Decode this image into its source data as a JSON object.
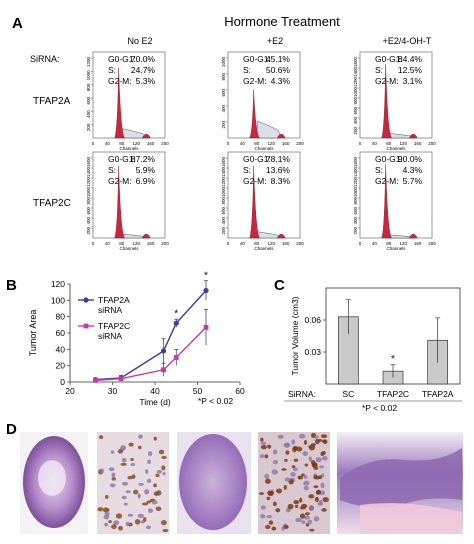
{
  "panels": {
    "a": "A",
    "b": "B",
    "c": "C",
    "d": "D"
  },
  "hormone_treatment_label": "Hormone Treatment",
  "sirna_label": "SiRNA:",
  "conditions": [
    "No E2",
    "+E2",
    "+E2/4-OH-T"
  ],
  "rows": [
    {
      "name": "TFAP2A",
      "cells": [
        {
          "g0g1": "70.0%",
          "s": "24.7%",
          "g2m": "5.3%",
          "yticks": [
            "200",
            "400",
            "600",
            "800",
            "1000",
            "1200"
          ],
          "peak": 0.88,
          "tail": 0.12
        },
        {
          "g0g1": "45.1%",
          "s": "50.6%",
          "g2m": "4.3%",
          "yticks": [
            "200",
            "400",
            "600",
            "800",
            "1000"
          ],
          "peak": 0.6,
          "tail": 0.22
        },
        {
          "g0g1": "84.4%",
          "s": "12.5%",
          "g2m": "3.1%",
          "yticks": [
            "200",
            "400",
            "600",
            "800",
            "1000",
            "1200",
            "1400",
            "1600"
          ],
          "peak": 0.92,
          "tail": 0.06
        }
      ]
    },
    {
      "name": "TFAP2C",
      "cells": [
        {
          "g0g1": "87.2%",
          "s": "5.9%",
          "g2m": "6.9%",
          "yticks": [
            "200",
            "400",
            "600",
            "800",
            "1000",
            "1200",
            "1400",
            "1600"
          ],
          "peak": 0.9,
          "tail": 0.05
        },
        {
          "g0g1": "78.1%",
          "s": "13.6%",
          "g2m": "8.3%",
          "yticks": [
            "200",
            "400",
            "600",
            "800",
            "1000",
            "1200",
            "1400",
            "1600"
          ],
          "peak": 0.9,
          "tail": 0.08
        },
        {
          "g0g1": "90.0%",
          "s": "4.3%",
          "g2m": "5.7%",
          "yticks": [
            "200",
            "400",
            "600",
            "800",
            "1000",
            "1200",
            "1400",
            "1600"
          ],
          "peak": 0.92,
          "tail": 0.04
        }
      ]
    }
  ],
  "phase_labels": {
    "g0g1": "G0-G1:",
    "s": "S:",
    "g2m": "G2-M:"
  },
  "flow_xticks": [
    "0",
    "40",
    "80",
    "120",
    "160",
    "200"
  ],
  "flow_xlabel": "Channels",
  "chart_data": [
    {
      "type": "line",
      "panel": "B",
      "xlabel": "Time (d)",
      "ylabel": "Tumor Area",
      "xlim": [
        20,
        60
      ],
      "ylim": [
        0,
        120
      ],
      "xticks": [
        "20",
        "30",
        "40",
        "50",
        "60"
      ],
      "yticks": [
        "0",
        "20",
        "40",
        "60",
        "80",
        "100",
        "120"
      ],
      "series": [
        {
          "name": "TFAP2A siRNA",
          "color": "#3b3fa0",
          "x": [
            26,
            32,
            42,
            45,
            52
          ],
          "y": [
            3,
            5,
            38,
            72,
            112
          ],
          "err": [
            2,
            3,
            15,
            5,
            12
          ]
        },
        {
          "name": "TFAP2C siRNA",
          "color": "#c43aa8",
          "x": [
            26,
            32,
            42,
            45,
            52
          ],
          "y": [
            2,
            4,
            15,
            30,
            67
          ],
          "err": [
            2,
            2,
            8,
            10,
            22
          ]
        }
      ],
      "annotations": [
        "*",
        "*"
      ],
      "note": "*P < 0.02"
    },
    {
      "type": "bar",
      "panel": "C",
      "ylabel": "Tumor Volume (cm3)",
      "ylim": [
        0,
        0.09
      ],
      "yticks": [
        "0.03",
        "0.06"
      ],
      "categories": [
        "SC",
        "TFAP2C",
        "TFAP2A"
      ],
      "values": [
        0.063,
        0.012,
        0.041
      ],
      "errors": [
        0.016,
        0.006,
        0.021
      ],
      "annotations": [
        "*"
      ],
      "xprefix": "SiRNA:",
      "note": "*P < 0.02",
      "bar_color": "#c9c9c9"
    }
  ],
  "legend_lines": [
    [
      "TFAP2A",
      "siRNA"
    ],
    [
      "TFAP2C",
      "siRNA"
    ]
  ],
  "p_note": "*P < 0.02",
  "colors": {
    "peak": "#c8283f",
    "fill": "#dcdcea",
    "he_purple": "#7a4fa0"
  }
}
